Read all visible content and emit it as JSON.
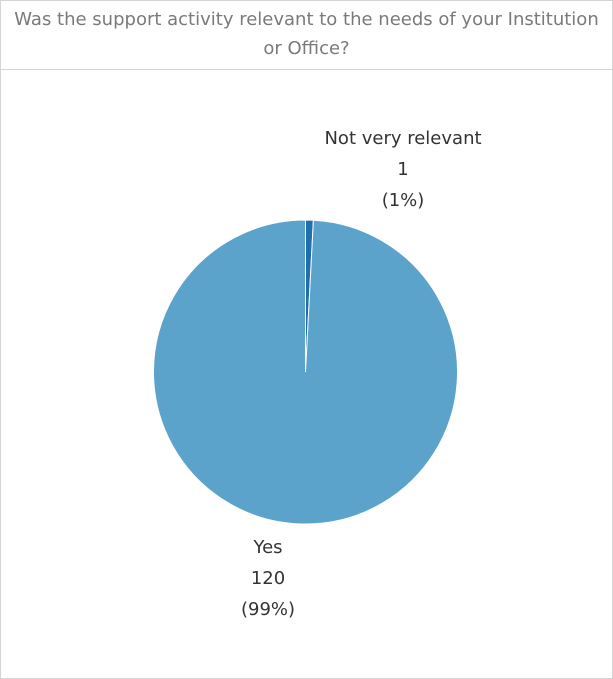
{
  "chart_data": {
    "type": "pie",
    "title": "Was the support activity relevant to the needs of your Institution or Office?",
    "slices": [
      {
        "label": "Yes",
        "value": 120,
        "percent": "(99%)",
        "color": "#5ca3cc"
      },
      {
        "label": "Not very relevant",
        "value": 1,
        "percent": "(1%)",
        "color": "#1f6fae"
      }
    ],
    "slice_border_color": "#ffffff"
  }
}
